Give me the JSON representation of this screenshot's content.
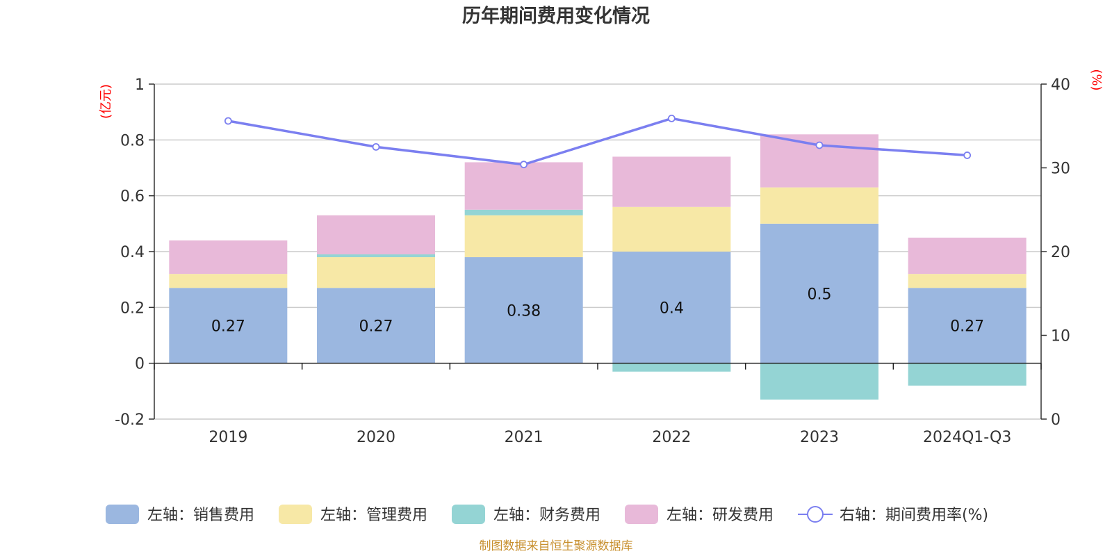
{
  "chart_data": {
    "type": "bar",
    "title": "历年期间费用变化情况",
    "categories": [
      "2019",
      "2020",
      "2021",
      "2022",
      "2023",
      "2024Q1-Q3"
    ],
    "left_axis": {
      "unit": "(亿元)",
      "ylim": [
        -0.2,
        1
      ],
      "ticks": [
        1,
        0.8,
        0.6,
        0.4,
        0.2,
        0,
        -0.2
      ],
      "tick_labels": [
        "1",
        "0.8",
        "0.6",
        "0.4",
        "0.2",
        "0",
        "-0.2"
      ]
    },
    "right_axis": {
      "unit": "(%)",
      "ylim": [
        0,
        40
      ],
      "ticks": [
        40,
        30,
        20,
        10,
        0
      ],
      "tick_labels": [
        "40",
        "30",
        "20",
        "10",
        "0"
      ]
    },
    "series": [
      {
        "name": "左轴：销售费用",
        "axis": "left",
        "kind": "stacked-bar",
        "color": "#9bb7e0",
        "values": [
          0.27,
          0.27,
          0.38,
          0.4,
          0.5,
          0.27
        ],
        "labels": [
          "0.27",
          "0.27",
          "0.38",
          "0.4",
          "0.5",
          "0.27"
        ]
      },
      {
        "name": "左轴：管理费用",
        "axis": "left",
        "kind": "stacked-bar",
        "color": "#f7e8a6",
        "values": [
          0.05,
          0.11,
          0.15,
          0.16,
          0.13,
          0.05
        ]
      },
      {
        "name": "左轴：财务费用",
        "axis": "left",
        "kind": "stacked-bar",
        "color": "#94d4d4",
        "values": [
          0.0,
          0.01,
          0.02,
          -0.03,
          -0.13,
          -0.08
        ]
      },
      {
        "name": "左轴：研发费用",
        "axis": "left",
        "kind": "stacked-bar",
        "color": "#e8b9d9",
        "values": [
          0.12,
          0.14,
          0.17,
          0.18,
          0.19,
          0.13
        ]
      },
      {
        "name": "右轴：期间费用率(%)",
        "axis": "right",
        "kind": "line",
        "color": "#7b7ff0",
        "values": [
          35.6,
          32.5,
          30.4,
          35.9,
          32.7,
          31.5
        ]
      }
    ],
    "legend_position": "bottom",
    "grid": true,
    "source": "制图数据来自恒生聚源数据库"
  }
}
